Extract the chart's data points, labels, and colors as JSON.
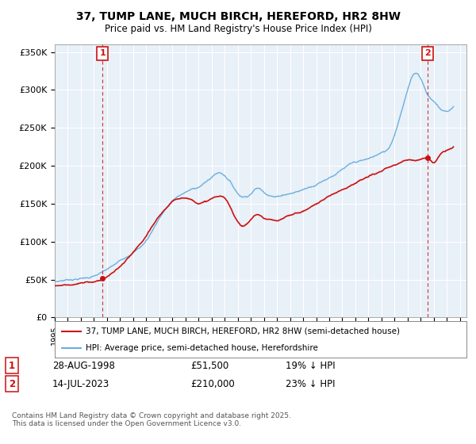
{
  "title": "37, TUMP LANE, MUCH BIRCH, HEREFORD, HR2 8HW",
  "subtitle": "Price paid vs. HM Land Registry's House Price Index (HPI)",
  "hpi_color": "#6ab0de",
  "price_color": "#cc1111",
  "dashed_color": "#cc1111",
  "background_color": "#ffffff",
  "plot_bg_color": "#e8f0f8",
  "grid_color": "#ffffff",
  "sale1_date": "28-AUG-1998",
  "sale1_price": 51500,
  "sale1_label": "19% ↓ HPI",
  "sale2_date": "14-JUL-2023",
  "sale2_price": 210000,
  "sale2_label": "23% ↓ HPI",
  "legend1": "37, TUMP LANE, MUCH BIRCH, HEREFORD, HR2 8HW (semi-detached house)",
  "legend2": "HPI: Average price, semi-detached house, Herefordshire",
  "footer": "Contains HM Land Registry data © Crown copyright and database right 2025.\nThis data is licensed under the Open Government Licence v3.0.",
  "ylim": [
    0,
    360000
  ],
  "yticks": [
    0,
    50000,
    100000,
    150000,
    200000,
    250000,
    300000,
    350000
  ],
  "xlim_start": 1995.0,
  "xlim_end": 2026.5,
  "sale1_x": 1998.65,
  "sale2_x": 2023.54
}
